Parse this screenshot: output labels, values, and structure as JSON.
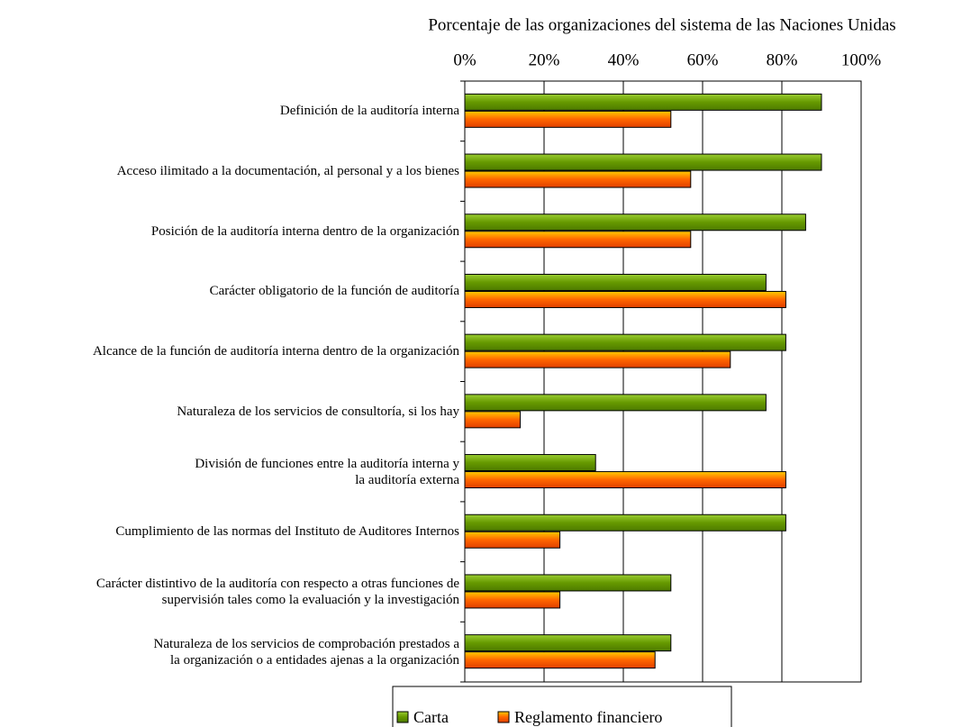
{
  "chart_data": {
    "type": "bar",
    "orientation": "horizontal",
    "x_axis_label": "Porcentaje de las organizaciones del sistema de las Naciones Unidas",
    "categories": [
      "Definición de la auditoría interna",
      "Acceso ilimitado a la documentación, al personal y a los bienes",
      "Posición de la auditoría interna dentro de la organización",
      "Carácter obligatorio de la función de auditoría",
      "Alcance de la función de auditoría interna dentro de la organización",
      "Naturaleza de los servicios de consultoría, si los hay",
      "División de funciones entre la auditoría interna y\nla auditoría externa",
      "Cumplimiento de las normas del Instituto de Auditores Internos",
      "Carácter distintivo de la auditoría con respecto a otras funciones de\nsupervisión tales como la evaluación y la investigación",
      "Naturaleza de los servicios de comprobación prestados a\nla organización o a entidades ajenas a la organización"
    ],
    "series": [
      {
        "name": "Carta",
        "color": "#669900",
        "values": [
          90,
          90,
          86,
          76,
          81,
          76,
          33,
          81,
          52,
          52
        ]
      },
      {
        "name": "Reglamento financiero",
        "color": "#ff6600",
        "values": [
          52,
          57,
          57,
          81,
          67,
          14,
          81,
          24,
          24,
          48
        ]
      }
    ],
    "xlim": [
      0,
      100
    ],
    "xticks": [
      {
        "value": 0,
        "label": "0%"
      },
      {
        "value": 20,
        "label": "20%"
      },
      {
        "value": 40,
        "label": "40%"
      },
      {
        "value": 60,
        "label": "60%"
      },
      {
        "value": 80,
        "label": "80%"
      },
      {
        "value": 100,
        "label": "100%"
      }
    ],
    "grid": true,
    "legend": "bottom"
  }
}
